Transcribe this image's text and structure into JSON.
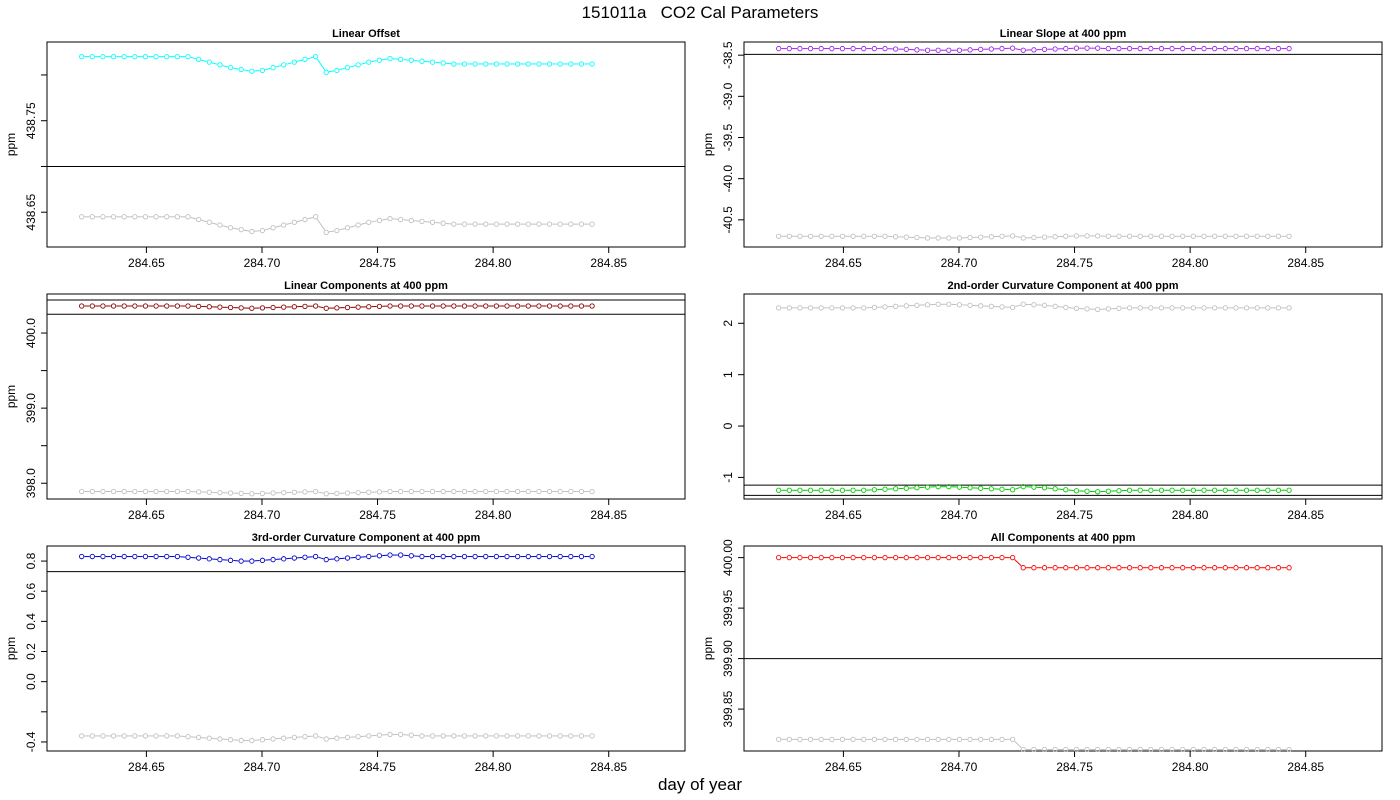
{
  "figure": {
    "title": "151011a   CO2 Cal Parameters",
    "xlabel": "day of year"
  },
  "chart_data": [
    {
      "type": "line",
      "title": "Linear Offset",
      "ylabel": "ppm",
      "xlim": [
        284.607,
        284.883
      ],
      "ylim": [
        438.612,
        438.836
      ],
      "xticks": [
        284.65,
        284.7,
        284.75,
        284.8,
        284.85
      ],
      "xtick_labels": [
        "284.65",
        "284.70",
        "284.75",
        "284.80",
        "284.85"
      ],
      "yticks": [
        438.65,
        438.7,
        438.75,
        438.8
      ],
      "ytick_labels": [
        "438.65",
        "",
        "438.75",
        ""
      ],
      "hlines": [
        438.7
      ],
      "series": [
        {
          "color": "#00ffff",
          "x0": 284.622,
          "dx": 0.0046,
          "values": [
            438.82,
            438.82,
            438.82,
            438.82,
            438.82,
            438.82,
            438.82,
            438.82,
            438.82,
            438.82,
            438.82,
            438.817,
            438.814,
            438.811,
            438.808,
            438.806,
            438.804,
            438.805,
            438.808,
            438.811,
            438.814,
            438.817,
            438.82,
            438.803,
            438.805,
            438.808,
            438.811,
            438.814,
            438.816,
            438.818,
            438.817,
            438.816,
            438.815,
            438.814,
            438.813,
            438.812,
            438.812,
            438.812,
            438.812,
            438.812,
            438.812,
            438.812,
            438.812,
            438.812,
            438.812,
            438.812,
            438.812,
            438.812,
            438.812
          ]
        },
        {
          "color": "#c0c0c0",
          "x0": 284.622,
          "dx": 0.0046,
          "values": [
            438.645,
            438.645,
            438.645,
            438.645,
            438.645,
            438.645,
            438.645,
            438.645,
            438.645,
            438.645,
            438.645,
            438.642,
            438.639,
            438.636,
            438.633,
            438.631,
            438.629,
            438.63,
            438.633,
            438.636,
            438.639,
            438.642,
            438.645,
            438.628,
            438.63,
            438.633,
            438.636,
            438.639,
            438.641,
            438.643,
            438.642,
            438.641,
            438.64,
            438.639,
            438.638,
            438.637,
            438.637,
            438.637,
            438.637,
            438.637,
            438.637,
            438.637,
            438.637,
            438.637,
            438.637,
            438.637,
            438.637,
            438.637,
            438.637
          ]
        }
      ]
    },
    {
      "type": "line",
      "title": "Linear Slope at 400 ppm",
      "ylabel": "ppm",
      "xlim": [
        284.607,
        284.883
      ],
      "ylim": [
        -40.83,
        -38.34
      ],
      "xticks": [
        284.65,
        284.7,
        284.75,
        284.8,
        284.85
      ],
      "xtick_labels": [
        "284.65",
        "284.70",
        "284.75",
        "284.80",
        "284.85"
      ],
      "yticks": [
        -40.5,
        -40.0,
        -39.5,
        -39.0,
        -38.5
      ],
      "ytick_labels": [
        "-40.5",
        "-40.0",
        "-39.5",
        "-39.0",
        "-38.5"
      ],
      "hlines": [
        -38.49
      ],
      "series": [
        {
          "color": "#a020f0",
          "x0": 284.622,
          "dx": 0.0046,
          "values": [
            -38.42,
            -38.42,
            -38.42,
            -38.42,
            -38.42,
            -38.42,
            -38.42,
            -38.42,
            -38.42,
            -38.42,
            -38.42,
            -38.425,
            -38.43,
            -38.435,
            -38.44,
            -38.44,
            -38.44,
            -38.44,
            -38.435,
            -38.43,
            -38.425,
            -38.42,
            -38.415,
            -38.44,
            -38.435,
            -38.43,
            -38.425,
            -38.42,
            -38.415,
            -38.415,
            -38.415,
            -38.42,
            -38.42,
            -38.42,
            -38.42,
            -38.42,
            -38.42,
            -38.42,
            -38.42,
            -38.42,
            -38.42,
            -38.42,
            -38.42,
            -38.42,
            -38.42,
            -38.42,
            -38.42,
            -38.42,
            -38.42
          ]
        },
        {
          "color": "#c0c0c0",
          "x0": 284.622,
          "dx": 0.0046,
          "values": [
            -40.7,
            -40.7,
            -40.7,
            -40.7,
            -40.7,
            -40.7,
            -40.7,
            -40.7,
            -40.7,
            -40.7,
            -40.7,
            -40.705,
            -40.71,
            -40.715,
            -40.72,
            -40.72,
            -40.72,
            -40.72,
            -40.715,
            -40.71,
            -40.705,
            -40.7,
            -40.695,
            -40.72,
            -40.715,
            -40.71,
            -40.705,
            -40.7,
            -40.695,
            -40.695,
            -40.695,
            -40.7,
            -40.7,
            -40.7,
            -40.7,
            -40.7,
            -40.7,
            -40.7,
            -40.7,
            -40.7,
            -40.7,
            -40.7,
            -40.7,
            -40.7,
            -40.7,
            -40.7,
            -40.7,
            -40.7,
            -40.7
          ]
        }
      ]
    },
    {
      "type": "line",
      "title": "Linear Components at 400 ppm",
      "ylabel": "ppm",
      "xlim": [
        284.607,
        284.883
      ],
      "ylim": [
        397.79,
        400.52
      ],
      "xticks": [
        284.65,
        284.7,
        284.75,
        284.8,
        284.85
      ],
      "xtick_labels": [
        "284.65",
        "284.70",
        "284.75",
        "284.80",
        "284.85"
      ],
      "yticks": [
        398.0,
        398.5,
        399.0,
        399.5,
        400.0
      ],
      "ytick_labels": [
        "398.0",
        "",
        "399.0",
        "",
        "400.0"
      ],
      "hlines": [
        400.44,
        400.25
      ],
      "series": [
        {
          "color": "#8b0000",
          "x0": 284.622,
          "dx": 0.0046,
          "values": [
            400.36,
            400.36,
            400.36,
            400.36,
            400.36,
            400.36,
            400.36,
            400.36,
            400.36,
            400.36,
            400.36,
            400.355,
            400.35,
            400.345,
            400.34,
            400.335,
            400.33,
            400.335,
            400.34,
            400.345,
            400.35,
            400.355,
            400.36,
            400.33,
            400.335,
            400.34,
            400.345,
            400.35,
            400.355,
            400.36,
            400.36,
            400.36,
            400.36,
            400.36,
            400.36,
            400.36,
            400.36,
            400.36,
            400.36,
            400.36,
            400.36,
            400.36,
            400.36,
            400.36,
            400.36,
            400.36,
            400.36,
            400.36,
            400.36
          ]
        },
        {
          "color": "#c0c0c0",
          "x0": 284.622,
          "dx": 0.0046,
          "values": [
            397.89,
            397.89,
            397.89,
            397.89,
            397.89,
            397.89,
            397.89,
            397.89,
            397.89,
            397.89,
            397.89,
            397.885,
            397.88,
            397.875,
            397.87,
            397.865,
            397.86,
            397.865,
            397.87,
            397.875,
            397.88,
            397.885,
            397.89,
            397.86,
            397.865,
            397.87,
            397.875,
            397.88,
            397.885,
            397.89,
            397.89,
            397.89,
            397.89,
            397.89,
            397.89,
            397.89,
            397.89,
            397.89,
            397.89,
            397.89,
            397.89,
            397.89,
            397.89,
            397.89,
            397.89,
            397.89,
            397.89,
            397.89,
            397.89
          ]
        }
      ]
    },
    {
      "type": "line",
      "title": "2nd-order Curvature Component at 400 ppm",
      "ylabel": "",
      "xlim": [
        284.607,
        284.883
      ],
      "ylim": [
        -1.42,
        2.57
      ],
      "xticks": [
        284.65,
        284.7,
        284.75,
        284.8,
        284.85
      ],
      "xtick_labels": [
        "284.65",
        "284.70",
        "284.75",
        "284.80",
        "284.85"
      ],
      "yticks": [
        -1,
        0,
        1,
        2
      ],
      "ytick_labels": [
        "-1",
        "0",
        "1",
        "2"
      ],
      "hlines": [
        -1.15,
        -1.35
      ],
      "series": [
        {
          "color": "#00cc00",
          "x0": 284.622,
          "dx": 0.0046,
          "values": [
            -1.25,
            -1.25,
            -1.25,
            -1.25,
            -1.25,
            -1.25,
            -1.25,
            -1.25,
            -1.25,
            -1.24,
            -1.23,
            -1.22,
            -1.21,
            -1.2,
            -1.19,
            -1.18,
            -1.18,
            -1.19,
            -1.2,
            -1.21,
            -1.22,
            -1.23,
            -1.24,
            -1.18,
            -1.19,
            -1.2,
            -1.22,
            -1.24,
            -1.26,
            -1.27,
            -1.28,
            -1.27,
            -1.26,
            -1.25,
            -1.25,
            -1.25,
            -1.25,
            -1.25,
            -1.25,
            -1.25,
            -1.25,
            -1.25,
            -1.25,
            -1.25,
            -1.25,
            -1.25,
            -1.25,
            -1.25,
            -1.25
          ]
        },
        {
          "color": "#c0c0c0",
          "x0": 284.622,
          "dx": 0.0046,
          "values": [
            2.3,
            2.3,
            2.3,
            2.3,
            2.3,
            2.3,
            2.3,
            2.3,
            2.3,
            2.31,
            2.32,
            2.33,
            2.34,
            2.35,
            2.36,
            2.37,
            2.37,
            2.36,
            2.35,
            2.34,
            2.33,
            2.32,
            2.31,
            2.37,
            2.36,
            2.35,
            2.33,
            2.31,
            2.29,
            2.28,
            2.27,
            2.28,
            2.29,
            2.3,
            2.3,
            2.3,
            2.3,
            2.3,
            2.3,
            2.3,
            2.3,
            2.3,
            2.3,
            2.3,
            2.3,
            2.3,
            2.3,
            2.3,
            2.3
          ]
        }
      ]
    },
    {
      "type": "line",
      "title": "3rd-order Curvature Component at 400 ppm",
      "ylabel": "ppm",
      "xlim": [
        284.607,
        284.883
      ],
      "ylim": [
        -0.46,
        0.9
      ],
      "xticks": [
        284.65,
        284.7,
        284.75,
        284.8,
        284.85
      ],
      "xtick_labels": [
        "284.65",
        "284.70",
        "284.75",
        "284.80",
        "284.85"
      ],
      "yticks": [
        -0.4,
        -0.2,
        0.0,
        0.2,
        0.4,
        0.6,
        0.8
      ],
      "ytick_labels": [
        "-0.4",
        "",
        "0.0",
        "0.2",
        "0.4",
        "0.6",
        "0.8"
      ],
      "hlines": [
        0.73
      ],
      "series": [
        {
          "color": "#0000cd",
          "x0": 284.622,
          "dx": 0.0046,
          "values": [
            0.83,
            0.83,
            0.83,
            0.83,
            0.83,
            0.83,
            0.83,
            0.83,
            0.83,
            0.83,
            0.825,
            0.82,
            0.815,
            0.81,
            0.805,
            0.8,
            0.8,
            0.805,
            0.81,
            0.815,
            0.82,
            0.825,
            0.83,
            0.81,
            0.815,
            0.82,
            0.825,
            0.83,
            0.835,
            0.84,
            0.84,
            0.835,
            0.83,
            0.83,
            0.83,
            0.83,
            0.83,
            0.83,
            0.83,
            0.83,
            0.83,
            0.83,
            0.83,
            0.83,
            0.83,
            0.83,
            0.83,
            0.83,
            0.83
          ]
        },
        {
          "color": "#c0c0c0",
          "x0": 284.622,
          "dx": 0.0046,
          "values": [
            -0.36,
            -0.36,
            -0.36,
            -0.36,
            -0.36,
            -0.36,
            -0.36,
            -0.36,
            -0.36,
            -0.36,
            -0.365,
            -0.37,
            -0.375,
            -0.38,
            -0.385,
            -0.39,
            -0.39,
            -0.385,
            -0.38,
            -0.375,
            -0.37,
            -0.365,
            -0.36,
            -0.38,
            -0.375,
            -0.37,
            -0.365,
            -0.36,
            -0.355,
            -0.35,
            -0.35,
            -0.355,
            -0.36,
            -0.36,
            -0.36,
            -0.36,
            -0.36,
            -0.36,
            -0.36,
            -0.36,
            -0.36,
            -0.36,
            -0.36,
            -0.36,
            -0.36,
            -0.36,
            -0.36,
            -0.36,
            -0.36
          ]
        }
      ]
    },
    {
      "type": "line",
      "title": "All Components at 400 ppm",
      "ylabel": "ppm",
      "xlim": [
        284.607,
        284.883
      ],
      "ylim": [
        399.8085,
        400.0115
      ],
      "xticks": [
        284.65,
        284.7,
        284.75,
        284.8,
        284.85
      ],
      "xtick_labels": [
        "284.65",
        "284.70",
        "284.75",
        "284.80",
        "284.85"
      ],
      "yticks": [
        399.85,
        399.9,
        399.95,
        400.0
      ],
      "ytick_labels": [
        "399.85",
        "399.90",
        "399.95",
        "400.00"
      ],
      "hlines": [
        399.9
      ],
      "series": [
        {
          "color": "#ff0000",
          "x0": 284.622,
          "dx": 0.0046,
          "values": [
            400.0,
            400.0,
            400.0,
            400.0,
            400.0,
            400.0,
            400.0,
            400.0,
            400.0,
            400.0,
            400.0,
            400.0,
            400.0,
            400.0,
            400.0,
            400.0,
            400.0,
            400.0,
            400.0,
            400.0,
            400.0,
            400.0,
            400.0,
            399.99,
            399.99,
            399.99,
            399.99,
            399.99,
            399.99,
            399.99,
            399.99,
            399.99,
            399.99,
            399.99,
            399.99,
            399.99,
            399.99,
            399.99,
            399.99,
            399.99,
            399.99,
            399.99,
            399.99,
            399.99,
            399.99,
            399.99,
            399.99,
            399.99,
            399.99
          ]
        },
        {
          "color": "#c0c0c0",
          "x0": 284.622,
          "dx": 0.0046,
          "values": [
            399.82,
            399.82,
            399.82,
            399.82,
            399.82,
            399.82,
            399.82,
            399.82,
            399.82,
            399.82,
            399.82,
            399.82,
            399.82,
            399.82,
            399.82,
            399.82,
            399.82,
            399.82,
            399.82,
            399.82,
            399.82,
            399.82,
            399.82,
            399.81,
            399.81,
            399.81,
            399.81,
            399.81,
            399.81,
            399.81,
            399.81,
            399.81,
            399.81,
            399.81,
            399.81,
            399.81,
            399.81,
            399.81,
            399.81,
            399.81,
            399.81,
            399.81,
            399.81,
            399.81,
            399.81,
            399.81,
            399.81,
            399.81,
            399.81
          ]
        }
      ]
    }
  ]
}
